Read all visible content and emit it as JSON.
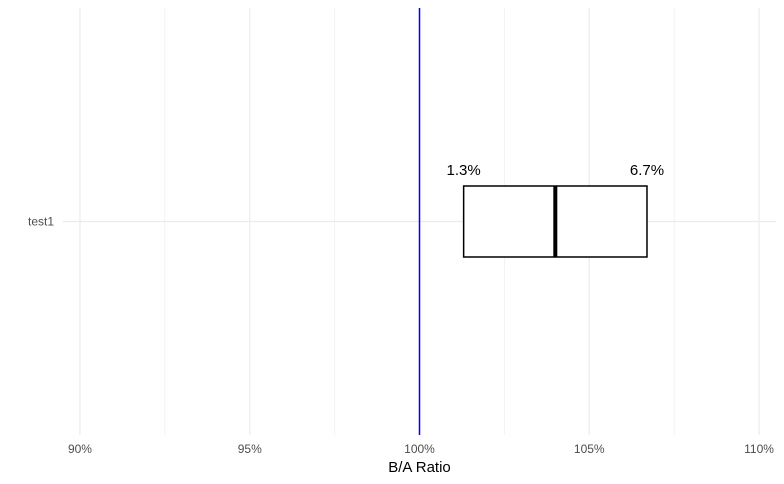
{
  "chart_data": {
    "type": "boxplot",
    "title": "",
    "xlabel": "B/A Ratio",
    "ylabel": "",
    "xlim": [
      89.5,
      110.5
    ],
    "x_ticks": [
      90,
      95,
      100,
      105,
      110
    ],
    "x_tick_labels": [
      "90%",
      "95%",
      "100%",
      "105%",
      "110%"
    ],
    "x_minor_ticks": [
      92.5,
      97.5,
      102.5,
      107.5
    ],
    "categories": [
      "test1"
    ],
    "boxes": [
      {
        "category": "test1",
        "lower": 101.3,
        "median": 104.0,
        "upper": 106.7,
        "lower_label": "1.3%",
        "upper_label": "6.7%"
      }
    ],
    "reference_line": {
      "x": 100,
      "color": "#0000ff"
    },
    "grid": true,
    "legend": "none",
    "colors": {
      "grid": "#ebebeb",
      "box_stroke": "#000000",
      "box_fill": "#ffffff",
      "tick_text": "#4d4d4d",
      "title_text": "#000000"
    }
  }
}
